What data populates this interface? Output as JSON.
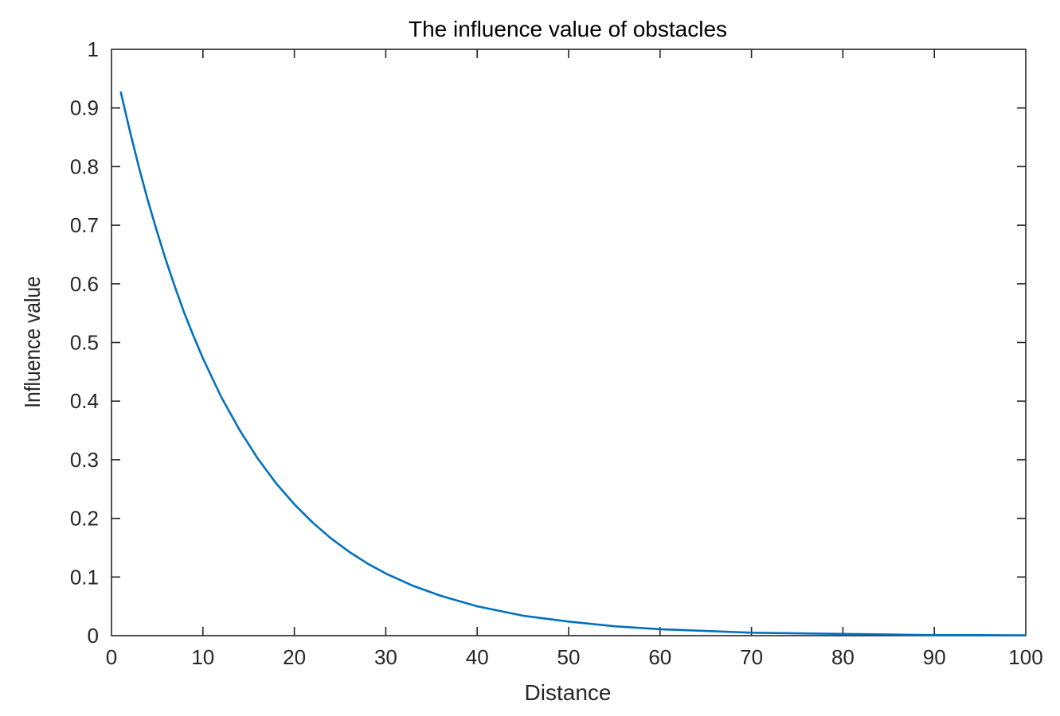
{
  "chart_data": {
    "type": "line",
    "title": "The influence value of obstacles",
    "xlabel": "Distance",
    "ylabel": "Influence value",
    "xlim": [
      0,
      100
    ],
    "ylim": [
      0,
      1
    ],
    "xticks": [
      "0",
      "10",
      "20",
      "30",
      "40",
      "50",
      "60",
      "70",
      "80",
      "90",
      "100"
    ],
    "yticks": [
      "0",
      "0.1",
      "0.2",
      "0.3",
      "0.4",
      "0.5",
      "0.6",
      "0.7",
      "0.8",
      "0.9",
      "1"
    ],
    "grid": false,
    "series": [
      {
        "color": "#0072BD",
        "x": [
          1,
          2,
          3,
          4,
          5,
          6,
          7,
          8,
          9,
          10,
          12,
          14,
          16,
          18,
          20,
          22,
          24,
          26,
          28,
          30,
          33,
          36,
          40,
          45,
          50,
          55,
          60,
          65,
          70,
          75,
          80,
          85,
          90,
          95,
          100
        ],
        "y": [
          0.928,
          0.861,
          0.799,
          0.741,
          0.688,
          0.638,
          0.592,
          0.549,
          0.51,
          0.473,
          0.407,
          0.351,
          0.302,
          0.26,
          0.224,
          0.193,
          0.166,
          0.143,
          0.123,
          0.106,
          0.085,
          0.068,
          0.05,
          0.034,
          0.024,
          0.016,
          0.011,
          0.008,
          0.005,
          0.004,
          0.003,
          0.002,
          0.001,
          0.001,
          0.0006
        ]
      }
    ]
  }
}
